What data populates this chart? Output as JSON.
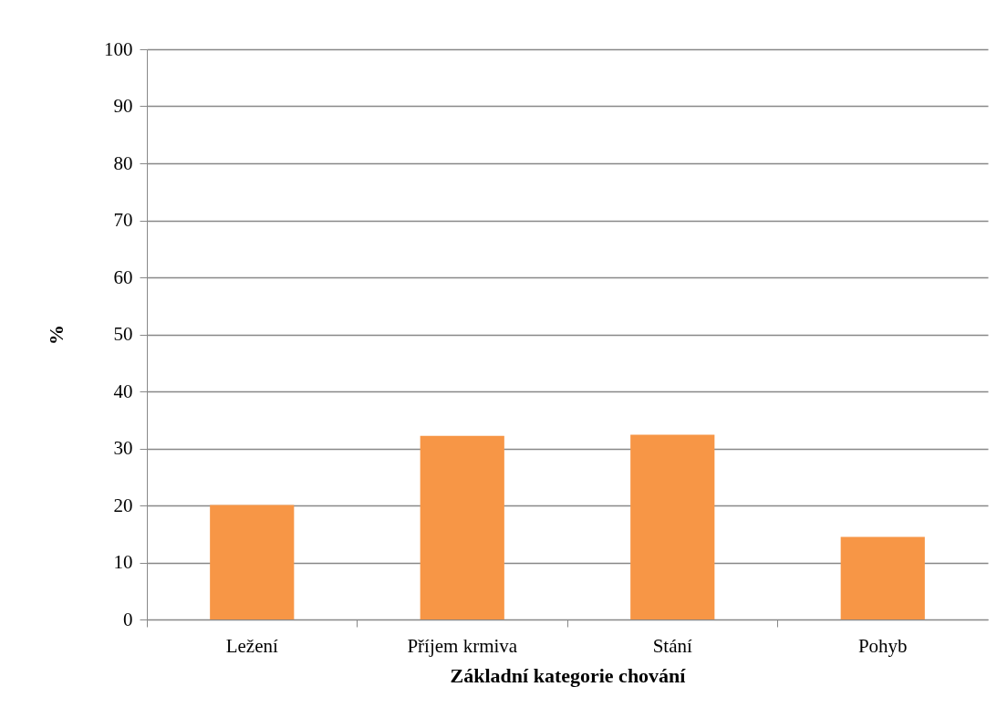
{
  "chart_data": {
    "type": "bar",
    "xlabel": "Základní kategorie chování",
    "ylabel": "%",
    "categories": [
      "Ležení",
      "Příjem krmiva",
      "Stání",
      "Pohyb"
    ],
    "values": [
      20.1,
      32.2,
      32.4,
      14.5
    ],
    "color": "#f79646",
    "ylim": [
      0,
      100
    ],
    "yticks": [
      0,
      10,
      20,
      30,
      40,
      50,
      60,
      70,
      80,
      90,
      100
    ],
    "grid": "y"
  }
}
